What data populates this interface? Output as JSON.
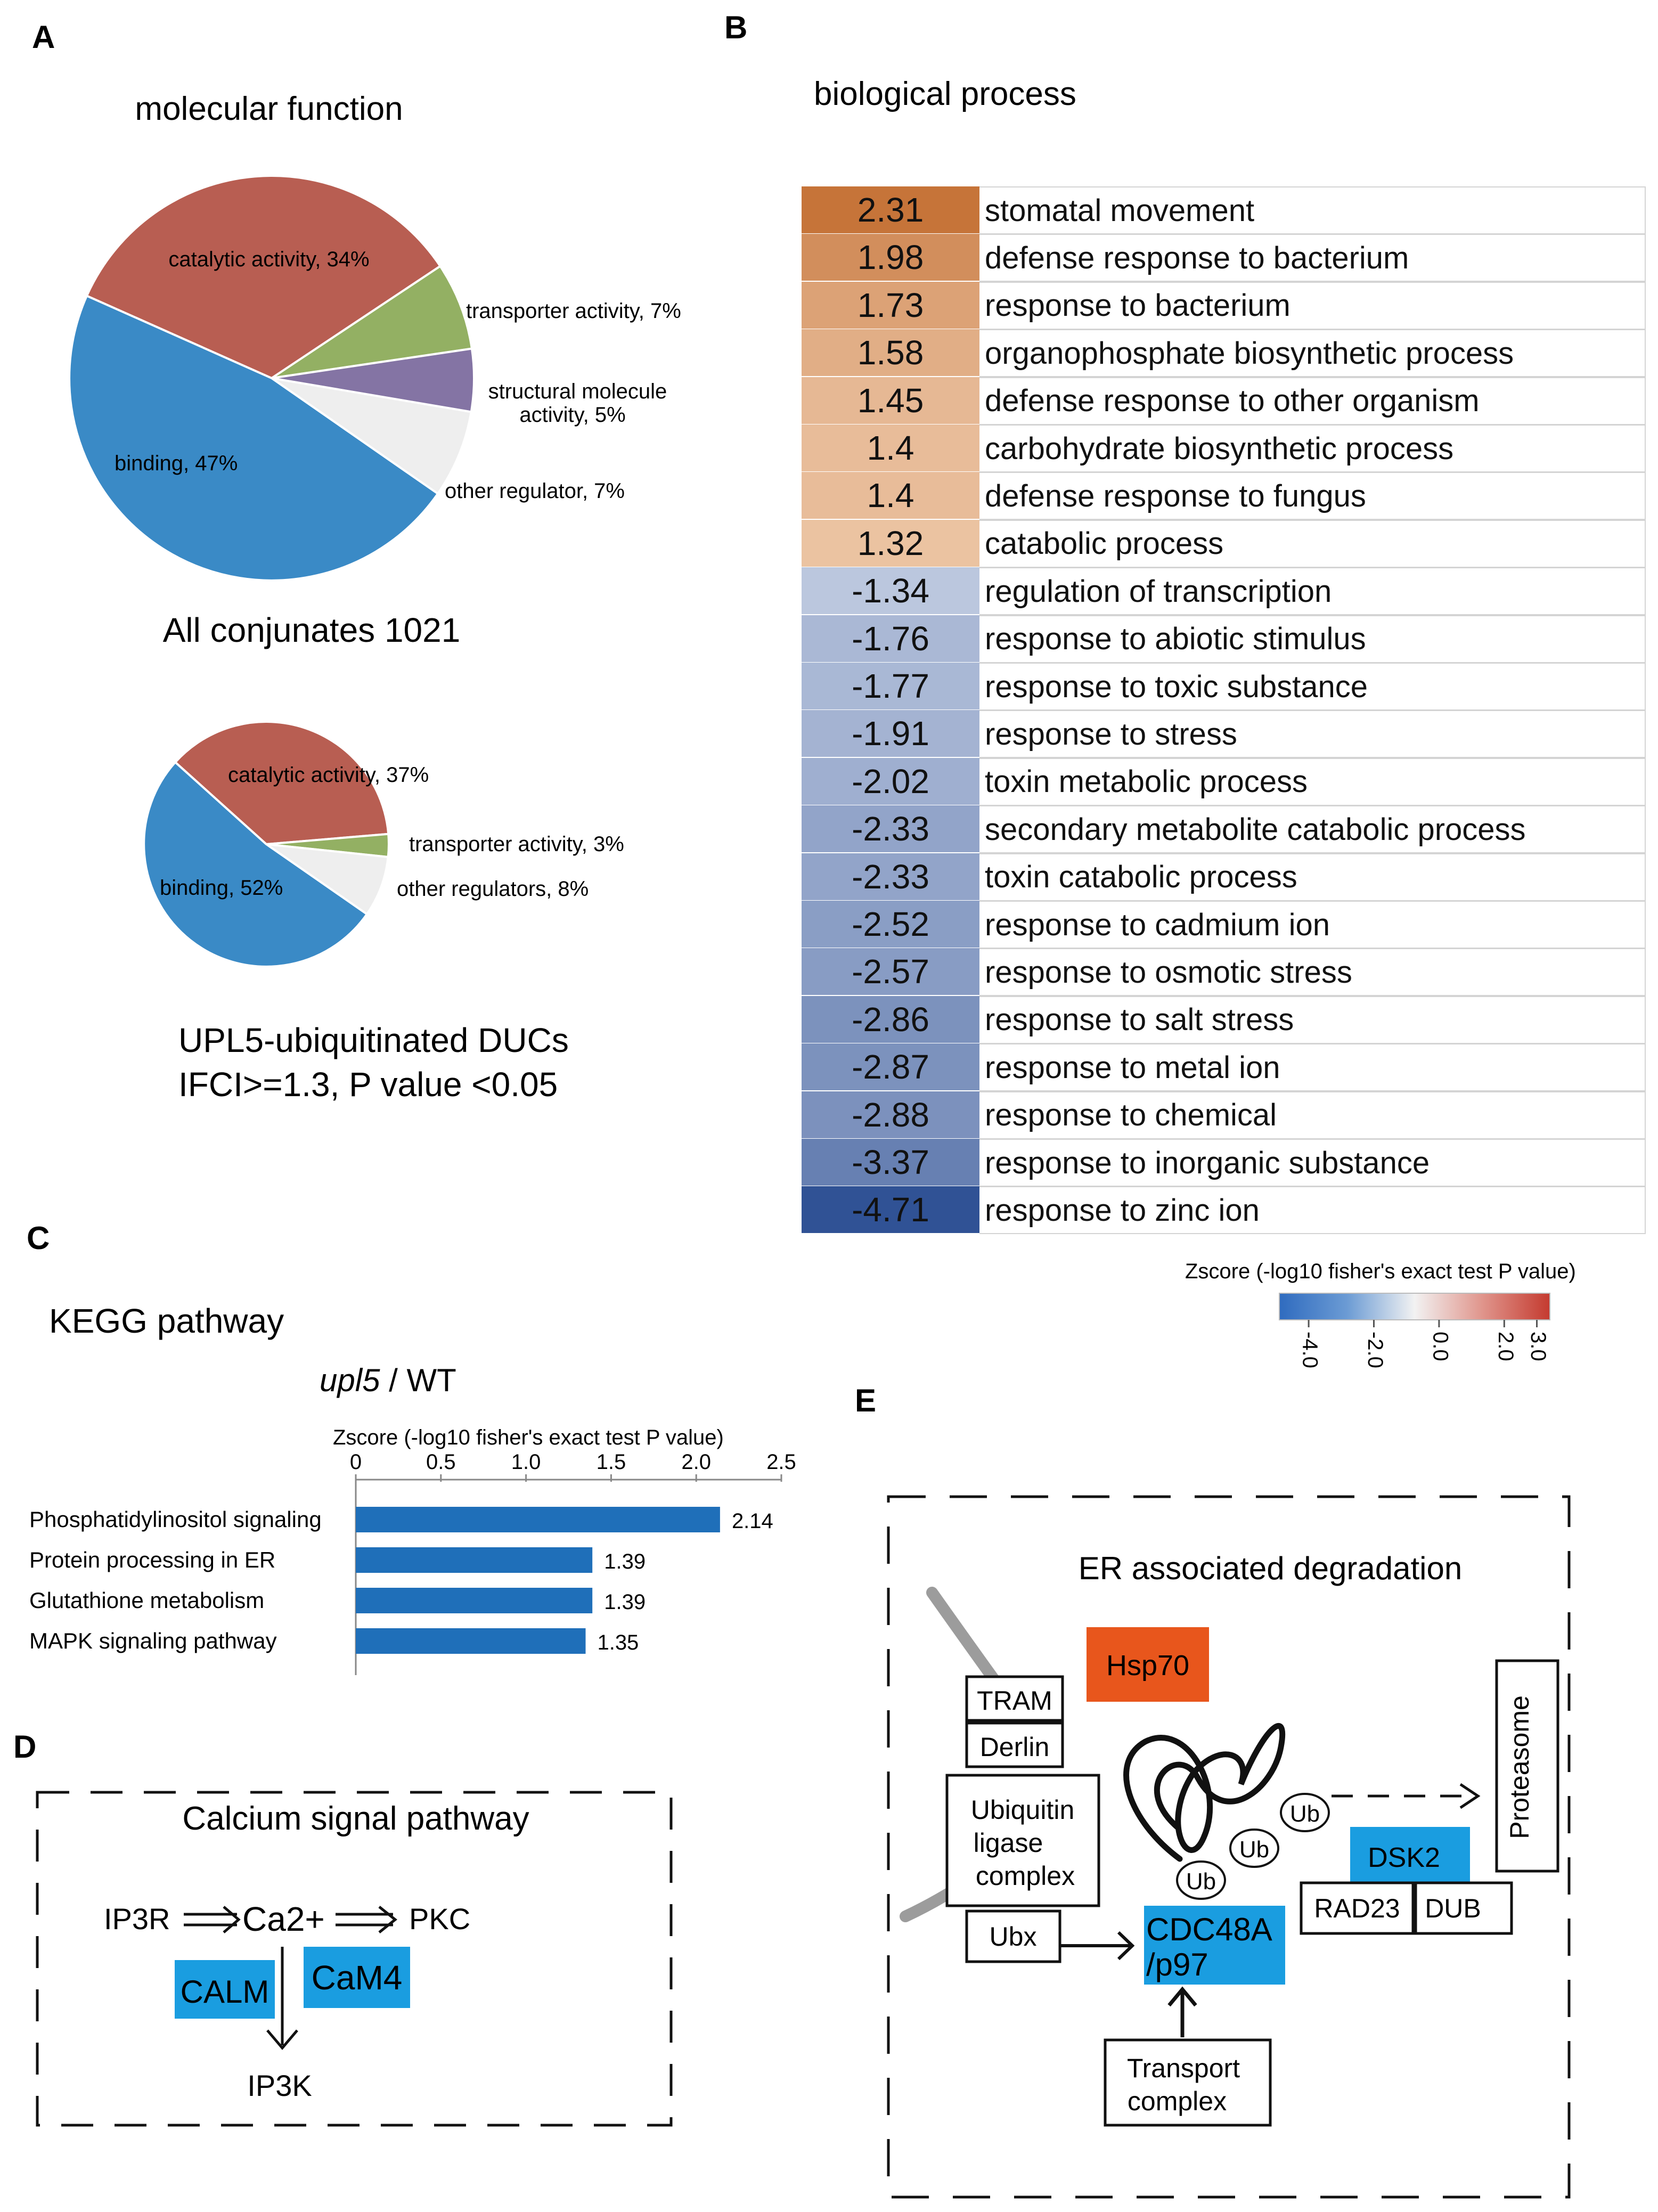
{
  "panels": {
    "a": "A",
    "b": "B",
    "c": "C",
    "d": "D",
    "e": "E"
  },
  "chart_data": [
    {
      "type": "pie",
      "title": "molecular function",
      "caption": "All conjunates 1021",
      "slices": [
        {
          "label": "catalytic activity, 34%",
          "value": 34,
          "color": "#b85e52"
        },
        {
          "label": "transporter activity, 7%",
          "value": 7,
          "color": "#93b063"
        },
        {
          "label": "structural molecule activity, 5%",
          "value": 5,
          "color": "#8474a4"
        },
        {
          "label": "other regulator, 7%",
          "value": 7,
          "color": "#eeeeee"
        },
        {
          "label": "binding, 47%",
          "value": 47,
          "color": "#3a8ac6"
        }
      ]
    },
    {
      "type": "pie",
      "caption_line1": "UPL5-ubiquitinated DUCs",
      "caption_line2": "IFCI>=1.3, P value <0.05",
      "slices": [
        {
          "label": "catalytic activity, 37%",
          "value": 37,
          "color": "#b85e52"
        },
        {
          "label": "transporter activity, 3%",
          "value": 3,
          "color": "#93b063"
        },
        {
          "label": "other regulators, 8%",
          "value": 8,
          "color": "#eeeeee"
        },
        {
          "label": "binding, 52%",
          "value": 52,
          "color": "#3a8ac6"
        }
      ]
    },
    {
      "type": "heatmap",
      "title": "biological process",
      "rows": [
        {
          "value": "2.31",
          "term": "stomatal movement"
        },
        {
          "value": "1.98",
          "term": "defense response to bacterium"
        },
        {
          "value": "1.73",
          "term": "response to bacterium"
        },
        {
          "value": "1.58",
          "term": "organophosphate biosynthetic process"
        },
        {
          "value": "1.45",
          "term": "defense response to other organism"
        },
        {
          "value": "1.4",
          "term": "carbohydrate biosynthetic process"
        },
        {
          "value": "1.4",
          "term": "defense response to fungus"
        },
        {
          "value": "1.32",
          "term": "catabolic process"
        },
        {
          "value": "-1.34",
          "term": "regulation of transcription"
        },
        {
          "value": "-1.76",
          "term": "response to abiotic stimulus"
        },
        {
          "value": "-1.77",
          "term": "response to toxic substance"
        },
        {
          "value": "-1.91",
          "term": "response to stress"
        },
        {
          "value": "-2.02",
          "term": "toxin metabolic process"
        },
        {
          "value": "-2.33",
          "term": "secondary metabolite catabolic process"
        },
        {
          "value": "-2.33",
          "term": "toxin catabolic process"
        },
        {
          "value": "-2.52",
          "term": "response to cadmium ion"
        },
        {
          "value": "-2.57",
          "term": "response to osmotic stress"
        },
        {
          "value": "-2.86",
          "term": "response to salt stress"
        },
        {
          "value": "-2.87",
          "term": "response to metal ion"
        },
        {
          "value": "-2.88",
          "term": "response to chemical"
        },
        {
          "value": "-3.37",
          "term": "response to inorganic substance"
        },
        {
          "value": "-4.71",
          "term": "response to zinc ion"
        }
      ],
      "colorbar": {
        "title": "Zscore (-log10 fisher's exact test P value)",
        "ticks": [
          "-4.0",
          "-2.0",
          "0.0",
          "2.0",
          "3.0"
        ],
        "range": [
          -4.9,
          3.4
        ]
      }
    },
    {
      "type": "bar",
      "orientation": "horizontal",
      "title": "KEGG pathway",
      "subtitle_italic": "upl5",
      "subtitle_rest": " / WT",
      "xlabel": "Zscore (-log10 fisher's exact test P value)",
      "xlim": [
        0,
        2.5
      ],
      "xticks": [
        "0",
        "0.5",
        "1.0",
        "1.5",
        "2.0",
        "2.5"
      ],
      "categories": [
        "Phosphatidylinositol signaling",
        "Protein processing in ER",
        "Glutathione metabolism",
        "MAPK signaling pathway"
      ],
      "values": [
        2.14,
        1.39,
        1.39,
        1.35
      ],
      "value_labels": [
        "2.14",
        "1.39",
        "1.39",
        "1.35"
      ],
      "bar_color": "#1f6fb9"
    }
  ],
  "panel_d": {
    "title": "Calcium signal pathway",
    "nodes": {
      "ip3r": "IP3R",
      "ca": "Ca2+",
      "pkc": "PKC",
      "calm": "CALM",
      "cam4": "CaM4",
      "ip3k": "IP3K"
    }
  },
  "panel_e": {
    "title": "ER associated degradation",
    "nodes": {
      "hsp70": "Hsp70",
      "tram": "TRAM",
      "derlin": "Derlin",
      "ligase1": "Ubiquitin",
      "ligase2": "ligase",
      "ligase3": "complex",
      "ubx": "Ubx",
      "cdc1": "CDC48A",
      "cdc2": "/p97",
      "ub": "Ub",
      "dsk2": "DSK2",
      "rad23": "RAD23",
      "dub": "DUB",
      "proteasome": "Proteasome",
      "transport1": "Transport",
      "transport2": "complex"
    }
  },
  "colors": {
    "highlight_blue": "#1a9de0",
    "highlight_orange": "#e8561c",
    "pie_text": "#222222"
  }
}
